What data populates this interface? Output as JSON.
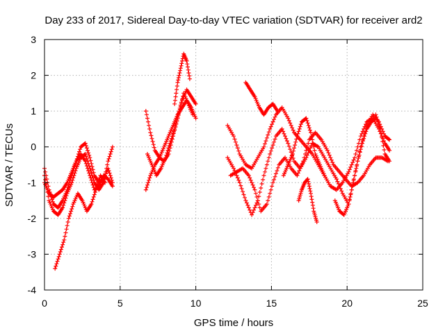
{
  "chart_data": {
    "type": "scatter",
    "title": "Day 233 of 2017, Sidereal Day-to-day VTEC variation (SDTVAR) for receiver ard2",
    "xlabel": "GPS time / hours",
    "ylabel": "SDTVAR / TECUs",
    "xlim": [
      0,
      25
    ],
    "ylim": [
      -4,
      3
    ],
    "xticks": [
      "0",
      "5",
      "10",
      "15",
      "20",
      "25"
    ],
    "yticks": [
      "-4",
      "-3",
      "-2",
      "-1",
      "0",
      "1",
      "2",
      "3"
    ],
    "grid": true,
    "marker": "+",
    "series_color": "#ff0000",
    "tracks": [
      {
        "name": "seg1-a",
        "x": [
          0.0,
          0.3,
          0.6,
          0.9,
          1.2,
          1.5,
          1.8,
          2.1,
          2.4,
          2.7,
          3.0,
          3.3,
          3.6,
          3.9,
          4.2,
          4.5
        ],
        "y": [
          -0.6,
          -1.2,
          -1.6,
          -1.7,
          -1.5,
          -1.2,
          -0.8,
          -0.4,
          0.0,
          0.1,
          -0.3,
          -0.8,
          -1.0,
          -0.9,
          -0.6,
          -1.0
        ]
      },
      {
        "name": "seg1-b",
        "x": [
          0.0,
          0.3,
          0.6,
          0.9,
          1.2,
          1.5,
          1.8,
          2.1,
          2.4,
          2.7,
          3.0,
          3.3,
          3.6,
          3.9,
          4.2,
          4.5
        ],
        "y": [
          -0.8,
          -1.5,
          -1.8,
          -1.9,
          -1.7,
          -1.3,
          -1.0,
          -0.6,
          -0.3,
          -0.2,
          -0.6,
          -1.0,
          -1.2,
          -1.0,
          -0.4,
          0.0
        ]
      },
      {
        "name": "seg1-c",
        "x": [
          0.0,
          0.3,
          0.6,
          0.9,
          1.2,
          1.5,
          1.8,
          2.1,
          2.4,
          2.7,
          3.0,
          3.3,
          3.6,
          3.9,
          4.2,
          4.5
        ],
        "y": [
          -1.0,
          -1.3,
          -1.4,
          -1.3,
          -1.2,
          -1.0,
          -0.7,
          -0.4,
          -0.2,
          -0.4,
          -0.8,
          -1.2,
          -1.1,
          -0.8,
          -0.9,
          -1.1
        ]
      },
      {
        "name": "seg1-d",
        "x": [
          0.7,
          1.0,
          1.3,
          1.6,
          1.9,
          2.2,
          2.5,
          2.8,
          3.1,
          3.4,
          3.7,
          4.0
        ],
        "y": [
          -3.4,
          -3.0,
          -2.6,
          -2.0,
          -1.6,
          -1.3,
          -1.5,
          -1.8,
          -1.6,
          -1.2,
          -0.8,
          -1.0
        ]
      },
      {
        "name": "seg2-a",
        "x": [
          6.7,
          7.0,
          7.3,
          7.6,
          7.9,
          8.2,
          8.5,
          8.8,
          9.1,
          9.4,
          9.7,
          10.0
        ],
        "y": [
          -1.2,
          -0.8,
          -0.5,
          -0.3,
          0.0,
          0.3,
          0.6,
          0.9,
          1.1,
          1.3,
          1.1,
          0.8
        ]
      },
      {
        "name": "seg2-b",
        "x": [
          6.7,
          7.0,
          7.3,
          7.6,
          7.9,
          8.2,
          8.5,
          8.8,
          9.1,
          9.4,
          9.7,
          10.0
        ],
        "y": [
          1.0,
          0.4,
          -0.1,
          -0.3,
          -0.4,
          -0.2,
          0.3,
          0.8,
          1.3,
          1.6,
          1.4,
          1.2
        ]
      },
      {
        "name": "seg2-c",
        "x": [
          6.8,
          7.1,
          7.4,
          7.7,
          8.0,
          8.3,
          8.6,
          8.9,
          9.2,
          9.5,
          9.8
        ],
        "y": [
          -0.2,
          -0.5,
          -0.8,
          -0.6,
          -0.3,
          0.1,
          0.5,
          1.0,
          1.5,
          1.2,
          0.9
        ]
      },
      {
        "name": "seg2-d",
        "x": [
          8.6,
          8.8,
          9.0,
          9.2,
          9.4,
          9.6
        ],
        "y": [
          1.2,
          1.8,
          2.2,
          2.6,
          2.4,
          1.9
        ]
      },
      {
        "name": "seg3-a",
        "x": [
          12.1,
          12.5,
          12.9,
          13.3,
          13.7,
          14.1,
          14.5,
          14.9,
          15.3,
          15.7,
          16.1,
          16.5,
          16.9,
          17.3,
          17.7,
          18.1,
          18.5,
          18.9,
          19.3,
          19.7,
          20.1,
          20.5,
          20.9,
          21.3,
          21.7,
          22.1,
          22.5,
          22.8
        ],
        "y": [
          -0.3,
          -0.6,
          -1.0,
          -1.5,
          -1.9,
          -1.5,
          -0.8,
          -0.2,
          0.3,
          0.5,
          0.1,
          -0.4,
          -0.6,
          -0.3,
          0.1,
          0.0,
          -0.3,
          -0.6,
          -0.9,
          -1.3,
          -1.6,
          -0.8,
          0.0,
          0.6,
          0.9,
          0.7,
          0.3,
          0.2
        ]
      },
      {
        "name": "seg3-b",
        "x": [
          12.1,
          12.5,
          12.9,
          13.3,
          13.7,
          14.1,
          14.5,
          14.9,
          15.3,
          15.7,
          16.1,
          16.5,
          16.9,
          17.3,
          17.7,
          18.1,
          18.5,
          18.9,
          19.3,
          19.7,
          20.1,
          20.5,
          20.9,
          21.3,
          21.7,
          22.1,
          22.5,
          22.8
        ],
        "y": [
          0.6,
          0.3,
          -0.2,
          -0.5,
          -0.6,
          -0.3,
          0.0,
          0.5,
          0.9,
          1.1,
          0.8,
          0.4,
          0.2,
          0.0,
          -0.2,
          -0.5,
          -0.8,
          -1.1,
          -1.2,
          -1.0,
          -0.7,
          -0.3,
          0.3,
          0.7,
          0.8,
          0.5,
          0.1,
          -0.1
        ]
      },
      {
        "name": "seg3-c",
        "x": [
          12.3,
          12.7,
          13.1,
          13.5,
          13.9,
          14.3,
          14.7,
          15.1,
          15.5,
          15.9,
          16.3,
          16.7,
          17.1,
          17.5,
          17.9,
          18.3,
          18.7,
          19.1,
          19.5,
          19.9,
          20.3,
          20.7,
          21.1,
          21.5,
          21.9,
          22.3,
          22.7
        ],
        "y": [
          -0.8,
          -0.7,
          -0.6,
          -0.8,
          -1.2,
          -1.8,
          -1.6,
          -1.0,
          -0.5,
          -0.3,
          -0.6,
          -0.8,
          -0.4,
          0.2,
          0.4,
          0.2,
          -0.1,
          -0.5,
          -0.7,
          -0.9,
          -1.1,
          -1.0,
          -0.8,
          -0.5,
          -0.3,
          -0.3,
          -0.4
        ]
      },
      {
        "name": "seg3-d",
        "x": [
          13.3,
          13.6,
          13.9,
          14.2,
          14.5,
          14.8,
          15.1,
          15.4
        ],
        "y": [
          1.8,
          1.6,
          1.4,
          1.1,
          0.9,
          1.1,
          1.2,
          1.0
        ]
      },
      {
        "name": "seg3-e",
        "x": [
          15.8,
          16.1,
          16.4,
          16.7,
          17.0,
          17.3,
          17.6,
          17.9,
          18.2,
          18.5
        ],
        "y": [
          -0.8,
          -0.5,
          -0.2,
          0.3,
          0.7,
          0.8,
          0.4,
          -0.2,
          -0.5,
          -0.8
        ]
      },
      {
        "name": "seg3-f",
        "x": [
          16.8,
          17.0,
          17.2,
          17.4,
          17.6,
          17.8,
          18.0
        ],
        "y": [
          -1.5,
          -1.2,
          -1.0,
          -0.9,
          -1.3,
          -1.8,
          -2.1
        ]
      },
      {
        "name": "seg3-g",
        "x": [
          19.2,
          19.5,
          19.8,
          20.1,
          20.4,
          20.7,
          21.0,
          21.3,
          21.6,
          21.9
        ],
        "y": [
          -1.5,
          -1.8,
          -1.9,
          -1.6,
          -1.0,
          -0.4,
          0.1,
          0.5,
          0.7,
          0.8
        ]
      },
      {
        "name": "seg3-h",
        "x": [
          21.9,
          22.2,
          22.5,
          22.8
        ],
        "y": [
          0.9,
          0.5,
          -0.2,
          -0.4
        ]
      }
    ]
  }
}
